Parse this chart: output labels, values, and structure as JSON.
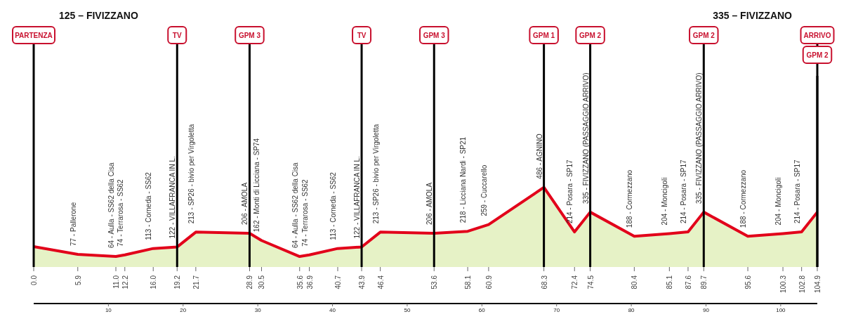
{
  "chart_data": {
    "type": "area",
    "x": [
      0,
      5.9,
      11.0,
      12.2,
      16.0,
      19.2,
      21.7,
      28.9,
      30.5,
      35.6,
      36.9,
      40.7,
      43.9,
      46.4,
      53.6,
      58.1,
      60.9,
      68.3,
      72.4,
      74.5,
      80.4,
      85.1,
      87.6,
      89.7,
      95.6,
      100.3,
      102.8,
      104.9
    ],
    "series": [
      {
        "color": "#e6f2c6",
        "values": [
          125,
          77,
          64,
          74,
          113,
          122,
          213,
          206,
          162,
          64,
          74,
          113,
          122,
          213,
          206,
          218,
          259,
          486,
          214,
          335,
          188,
          204,
          214,
          335,
          188,
          204,
          214,
          335
        ]
      },
      {
        "type": "line",
        "color": "#e2001a",
        "values": [
          125,
          77,
          64,
          74,
          113,
          122,
          213,
          206,
          162,
          64,
          74,
          113,
          122,
          213,
          206,
          218,
          259,
          486,
          214,
          335,
          188,
          204,
          214,
          335,
          188,
          204,
          214,
          335
        ],
        "value_labels": [
          null,
          "77 - Pallerone",
          "64 - Aulla - SS62 della Cisa",
          "74 - Terrarosa - SS62",
          "113 - Corneda - SS62",
          "122 - VILLAFRANCA IN L.",
          "213 - SP26 - bivio per Virgoletta",
          "206 - AMOLA",
          "162 - Monti di Licciana - SP74",
          "64 - Aulla - SS62 della Cisa",
          "74 - Terrarosa - SS62",
          "113 - Corneda - SS62",
          "122 - VILLAFRANCA IN L.",
          "213 - SP26 - bivio per Virgoletta",
          "206 - AMOLA",
          "218 - Licciana Nardi - SP21",
          "259 - Cuccarello",
          "486 - AGNINO",
          "214 - Posara - SP17",
          "335 - FIVIZZANO (PASSAGGIO ARRIVO)",
          "188 - Cormezzano",
          "204 - Moncigoli",
          "214 - Posara - SP17",
          "335 - FIVIZZANO (PASSAGGIO ARRIVO)",
          "188 - Cormezzano",
          "204 - Moncigoli",
          "214 - Posara - SP17",
          null
        ]
      }
    ],
    "xlim": [
      0,
      104.9
    ],
    "xticks": [
      {
        "value": 0,
        "label": "0.0"
      },
      5.9,
      {
        "value": 11,
        "label": "11.0"
      },
      12.2,
      {
        "value": 16,
        "label": "16.0"
      },
      19.2,
      21.7,
      28.9,
      30.5,
      35.6,
      36.9,
      40.7,
      43.9,
      46.4,
      53.6,
      58.1,
      60.9,
      68.3,
      72.4,
      74.5,
      80.4,
      85.1,
      87.6,
      89.7,
      95.6,
      100.3,
      102.8,
      104.9
    ],
    "x2lim": [
      0,
      104.9
    ],
    "x2ticks": [
      10,
      20,
      30,
      40,
      50,
      60,
      70,
      80,
      90,
      100
    ],
    "ref_lines": [
      {
        "axis": "x",
        "value": 0,
        "label": "PARTENZA",
        "color": "#000000"
      },
      {
        "axis": "x",
        "value": 19.2,
        "label": "TV",
        "color": "#000000"
      },
      {
        "axis": "x",
        "value": 28.9,
        "label": "GPM 3",
        "color": "#000000"
      },
      {
        "axis": "x",
        "value": 43.9,
        "label": "TV",
        "color": "#000000"
      },
      {
        "axis": "x",
        "value": 53.6,
        "label": "GPM 3",
        "color": "#000000"
      },
      {
        "axis": "x",
        "value": 68.3,
        "label": "GPM 1",
        "color": "#000000"
      },
      {
        "axis": "x",
        "value": 74.5,
        "label": "GPM 2",
        "color": "#000000"
      },
      {
        "axis": "x",
        "value": 89.7,
        "label": "GPM 2",
        "color": "#000000"
      },
      {
        "axis": "x",
        "value": 104.9,
        "label": "ARRIVO",
        "color": "#000000"
      },
      {
        "axis": "x",
        "value": 104.9,
        "label": "GPM 2",
        "color": "#000000"
      }
    ],
    "annotations": [
      "125 – FIVIZZANO",
      "335 – FIVIZZANO"
    ],
    "legend": false,
    "grid": false
  }
}
